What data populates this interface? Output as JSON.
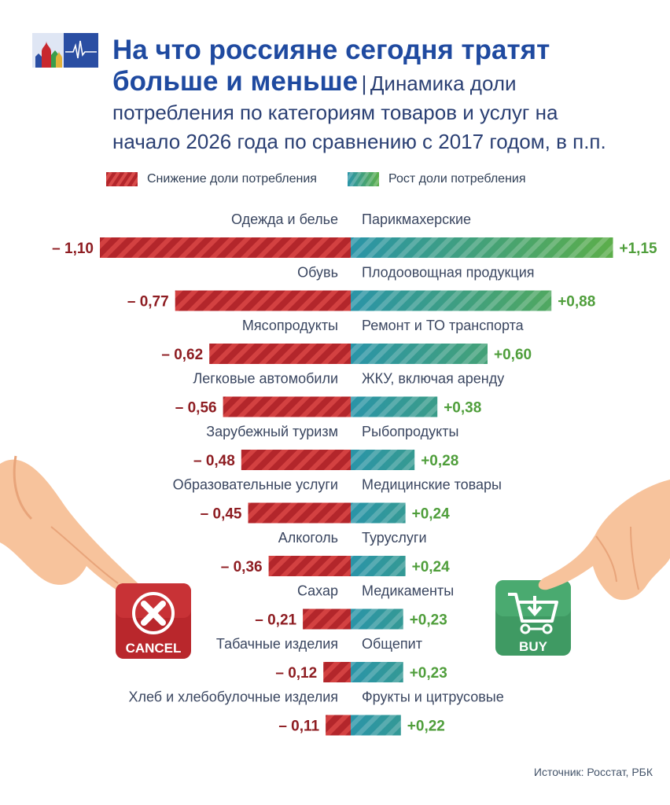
{
  "title": {
    "main_line1": "На что россияне сегодня тратят",
    "main_line2": "больше и меньше",
    "separator": "|",
    "sub_line1": "Динамика доли",
    "sub_line2": "потребления по категориям товаров и услуг на",
    "sub_line3": "начало 2026 года по сравнению с 2017 годом, в п.п."
  },
  "legend": {
    "decrease": "Снижение доли потребления",
    "increase": "Рост доли потребления"
  },
  "colors": {
    "decrease": "#b3262b",
    "decrease_label": "#8e1d22",
    "increase_teal": "#2a94a8",
    "increase_green": "#5cae4a",
    "increase_label": "#4f9e3b",
    "category_text": "#3a4660"
  },
  "chart_data": {
    "type": "bar",
    "layout": "diverging-butterfly",
    "decrease": {
      "name": "Снижение доли потребления",
      "categories": [
        "Одежда и белье",
        "Обувь",
        "Мясопродукты",
        "Легковые автомобили",
        "Зарубежный туризм",
        "Образовательные услуги",
        "Алкоголь",
        "Сахар",
        "Табачные изделия",
        "Хлеб и хлебобулочные изделия"
      ],
      "values": [
        -1.1,
        -0.77,
        -0.62,
        -0.56,
        -0.48,
        -0.45,
        -0.36,
        -0.21,
        -0.12,
        -0.11
      ],
      "labels": [
        "– 1,10",
        "– 0,77",
        "– 0,62",
        "– 0,56",
        "– 0,48",
        "– 0,45",
        "– 0,36",
        "– 0,21",
        "– 0,12",
        "– 0,11"
      ]
    },
    "increase": {
      "name": "Рост доли потребления",
      "categories": [
        "Парикмахерские",
        "Плодоовощная продукция",
        "Ремонт и ТО транспорта",
        "ЖКУ, включая аренду",
        "Рыбопродукты",
        "Медицинские товары",
        "Туруслуги",
        "Медикаменты",
        "Общепит",
        "Фрукты и цитрусовые"
      ],
      "values": [
        1.15,
        0.88,
        0.6,
        0.38,
        0.28,
        0.24,
        0.24,
        0.23,
        0.23,
        0.22
      ],
      "labels": [
        "+1,15",
        "+0,88",
        "+0,60",
        "+0,38",
        "+0,28",
        "+0,24",
        "+0,24",
        "+0,23",
        "+0,23",
        "+0,22"
      ]
    }
  },
  "buttons": {
    "cancel": "CANCEL",
    "buy": "BUY"
  },
  "source": "Источник: Росстат, РБК"
}
